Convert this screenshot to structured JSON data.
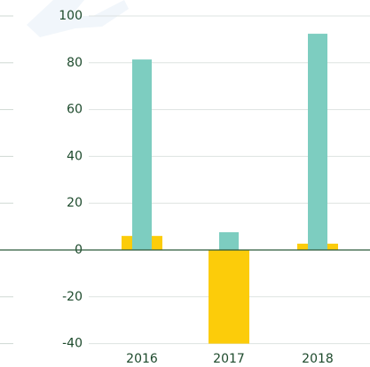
{
  "chart_data": {
    "type": "bar",
    "categories": [
      "2016",
      "2017",
      "2018"
    ],
    "series": [
      {
        "color": "#fccc0a",
        "values": [
          6,
          -40,
          2.7
        ]
      },
      {
        "color": "#7dcdc0",
        "values": [
          81.4,
          7.6,
          92.4
        ]
      }
    ],
    "ylim": [
      -40,
      100
    ],
    "yticks": [
      -40,
      -20,
      0,
      20,
      40,
      60,
      80,
      100
    ],
    "grid": true
  }
}
